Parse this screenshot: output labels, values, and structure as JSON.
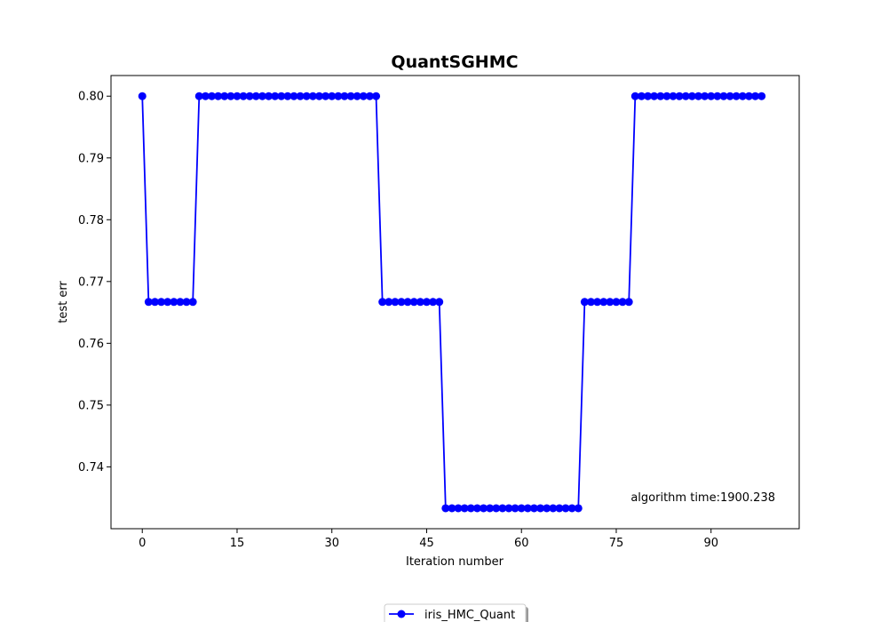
{
  "chart_data": {
    "type": "line",
    "title": "QuantSGHMC",
    "xlabel": "Iteration number",
    "ylabel": "test err",
    "xlim": [
      -4.95,
      103.95
    ],
    "ylim": [
      0.72999,
      0.80334
    ],
    "xticks": [
      0,
      15,
      30,
      45,
      60,
      75,
      90
    ],
    "yticks": [
      0.74,
      0.75,
      0.76,
      0.77,
      0.78,
      0.79,
      0.8
    ],
    "ytick_labels": [
      "0.74",
      "0.75",
      "0.76",
      "0.77",
      "0.78",
      "0.79",
      "0.80"
    ],
    "grid": false,
    "legend_position": "bottom-center",
    "annotation": "algorithm time:1900.238",
    "series": [
      {
        "name": "iris_HMC_Quant",
        "color": "#0000ff",
        "marker": "circle",
        "x": [
          0,
          1,
          2,
          3,
          4,
          5,
          6,
          7,
          8,
          9,
          10,
          11,
          12,
          13,
          14,
          15,
          16,
          17,
          18,
          19,
          20,
          21,
          22,
          23,
          24,
          25,
          26,
          27,
          28,
          29,
          30,
          31,
          32,
          33,
          34,
          35,
          36,
          37,
          38,
          39,
          40,
          41,
          42,
          43,
          44,
          45,
          46,
          47,
          48,
          49,
          50,
          51,
          52,
          53,
          54,
          55,
          56,
          57,
          58,
          59,
          60,
          61,
          62,
          63,
          64,
          65,
          66,
          67,
          68,
          69,
          70,
          71,
          72,
          73,
          74,
          75,
          76,
          77,
          78,
          79,
          80,
          81,
          82,
          83,
          84,
          85,
          86,
          87,
          88,
          89,
          90,
          91,
          92,
          93,
          94,
          95,
          96,
          97,
          98
        ],
        "y": [
          0.8,
          0.7667,
          0.7667,
          0.7667,
          0.7667,
          0.7667,
          0.7667,
          0.7667,
          0.7667,
          0.8,
          0.8,
          0.8,
          0.8,
          0.8,
          0.8,
          0.8,
          0.8,
          0.8,
          0.8,
          0.8,
          0.8,
          0.8,
          0.8,
          0.8,
          0.8,
          0.8,
          0.8,
          0.8,
          0.8,
          0.8,
          0.8,
          0.8,
          0.8,
          0.8,
          0.8,
          0.8,
          0.8,
          0.8,
          0.7667,
          0.7667,
          0.7667,
          0.7667,
          0.7667,
          0.7667,
          0.7667,
          0.7667,
          0.7667,
          0.7667,
          0.7333,
          0.7333,
          0.7333,
          0.7333,
          0.7333,
          0.7333,
          0.7333,
          0.7333,
          0.7333,
          0.7333,
          0.7333,
          0.7333,
          0.7333,
          0.7333,
          0.7333,
          0.7333,
          0.7333,
          0.7333,
          0.7333,
          0.7333,
          0.7333,
          0.7333,
          0.7667,
          0.7667,
          0.7667,
          0.7667,
          0.7667,
          0.7667,
          0.7667,
          0.7667,
          0.8,
          0.8,
          0.8,
          0.8,
          0.8,
          0.8,
          0.8,
          0.8,
          0.8,
          0.8,
          0.8,
          0.8,
          0.8,
          0.8,
          0.8,
          0.8,
          0.8,
          0.8,
          0.8,
          0.8,
          0.8
        ]
      }
    ]
  }
}
